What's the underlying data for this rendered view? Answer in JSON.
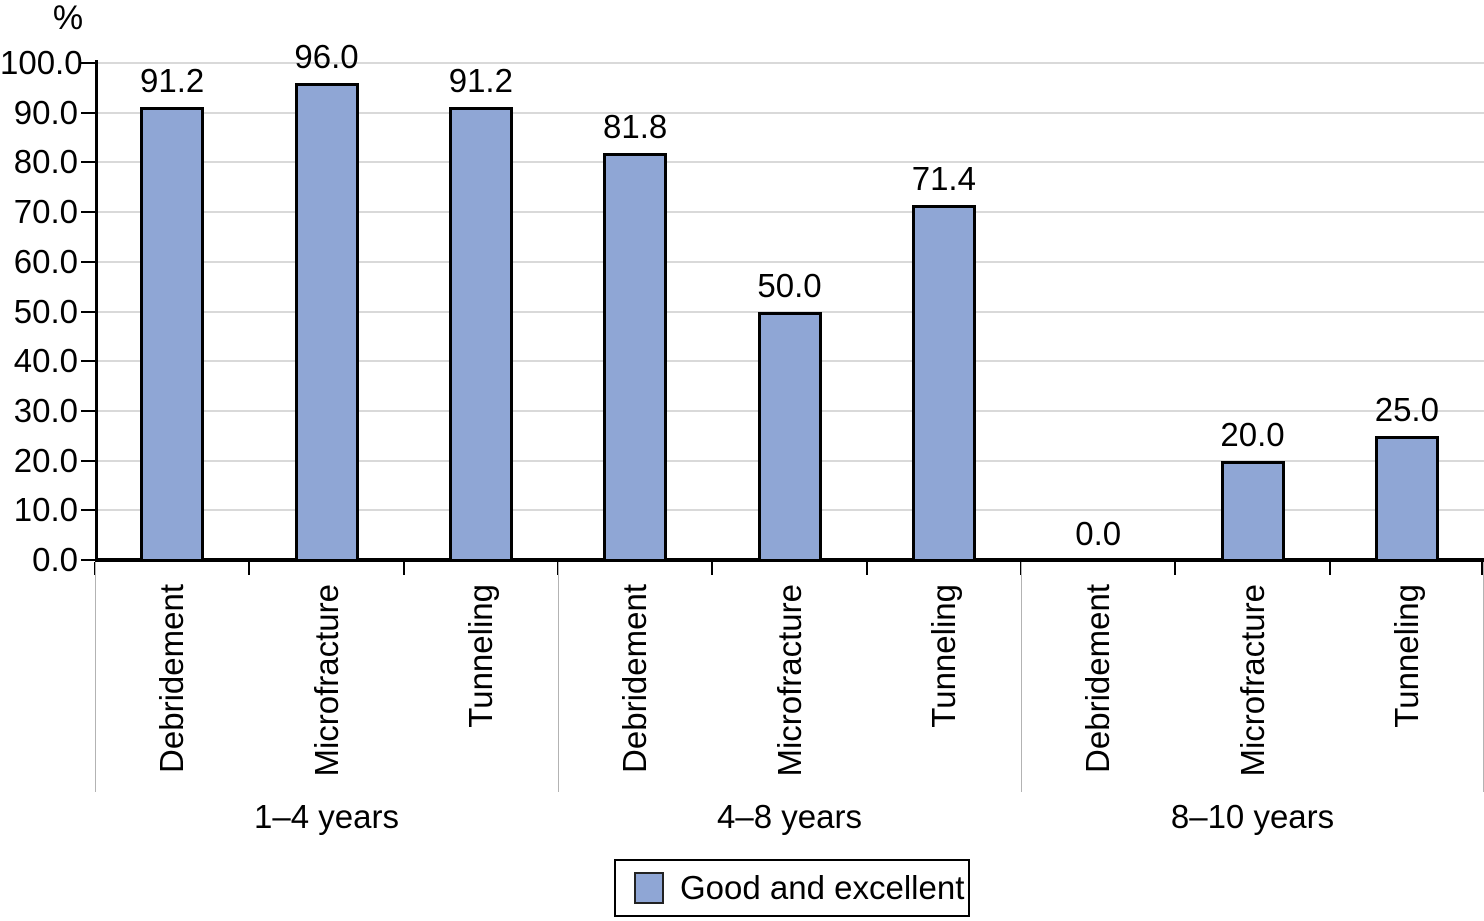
{
  "chart_data": {
    "type": "bar",
    "title": "",
    "xlabel": "",
    "ylabel": "%",
    "ylim": [
      0,
      100
    ],
    "ytick_step": 10,
    "ytick_decimals": 1,
    "value_label_decimals": 1,
    "grid": "horizontal",
    "legend_position": "bottom",
    "series_name": "Good and excellent",
    "bar_color": "#8fa6d5",
    "bar_border_color": "#000000",
    "groups": [
      {
        "label": "1–4 years",
        "categories": [
          "Debridement",
          "Microfracture",
          "Tunneling"
        ],
        "values": [
          91.2,
          96.0,
          91.2
        ]
      },
      {
        "label": "4–8 years",
        "categories": [
          "Debridement",
          "Microfracture",
          "Tunneling"
        ],
        "values": [
          81.8,
          50.0,
          71.4
        ]
      },
      {
        "label": "8–10 years",
        "categories": [
          "Debridement",
          "Microfracture",
          "Tunneling"
        ],
        "values": [
          0.0,
          20.0,
          25.0
        ]
      }
    ]
  },
  "colors": {
    "grid": "#d9d9d9",
    "separator": "#b3b3b3",
    "axis": "#000000"
  }
}
